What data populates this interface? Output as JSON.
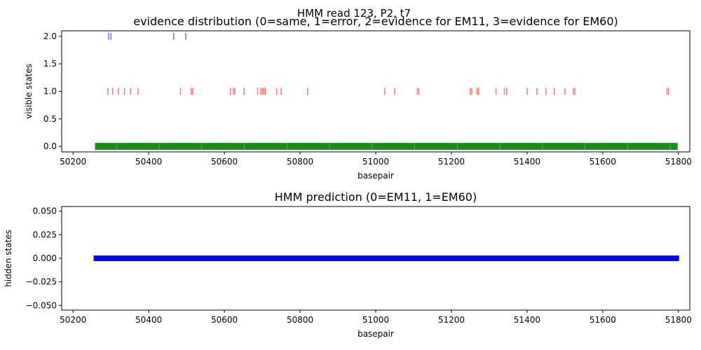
{
  "figure": {
    "suptitle": "HMM read 123, P2, t7"
  },
  "chart_data": [
    {
      "type": "scatter",
      "title": "evidence distribution (0=same, 1=error, 2=evidence for EM11, 3=evidence for EM60)",
      "xlabel": "basepair",
      "ylabel": "visible states",
      "xlim": [
        50170,
        51830
      ],
      "ylim": [
        -0.1,
        2.1
      ],
      "x_ticks": [
        50200,
        50400,
        50600,
        50800,
        51000,
        51200,
        51400,
        51600,
        51800
      ],
      "y_ticks": [
        0.0,
        0.5,
        1.0,
        1.5,
        2.0
      ],
      "y_tick_labels": [
        "0.0",
        "0.5",
        "1.0",
        "1.5",
        "2.0"
      ],
      "marker": "|",
      "series": [
        {
          "state": 0,
          "color": "#008000",
          "x_range": [
            50258,
            51798
          ],
          "values": []
        },
        {
          "state": 1,
          "color": "#ff0000",
          "values": [
            50292,
            50305,
            50320,
            50336,
            50352,
            50372,
            50484,
            50512,
            50516,
            50616,
            50624,
            50628,
            50652,
            50688,
            50696,
            50700,
            50704,
            50708,
            50738,
            50750,
            50820,
            51024,
            51050,
            51110,
            51114,
            51250,
            51254,
            51268,
            51272,
            51318,
            51340,
            51346,
            51400,
            51426,
            51450,
            51472,
            51500,
            51522,
            51526,
            51770,
            51774
          ]
        },
        {
          "state": 2,
          "color": "#0000ff",
          "values": [
            50294,
            50300,
            50466,
            50498
          ]
        }
      ]
    },
    {
      "type": "scatter",
      "title": "HMM prediction (0=EM11, 1=EM60)",
      "xlabel": "basepair",
      "ylabel": "hidden states",
      "xlim": [
        50170,
        51830
      ],
      "ylim": [
        -0.055,
        0.055
      ],
      "x_ticks": [
        50200,
        50400,
        50600,
        50800,
        51000,
        51200,
        51400,
        51600,
        51800
      ],
      "y_ticks": [
        -0.05,
        -0.025,
        0.0,
        0.025,
        0.05
      ],
      "y_tick_labels": [
        "−0.050",
        "−0.025",
        "0.000",
        "0.025",
        "0.050"
      ],
      "marker": "s",
      "series": [
        {
          "state": 0,
          "color": "#0000ff",
          "x_range": [
            50258,
            51798
          ],
          "values": []
        }
      ]
    }
  ]
}
